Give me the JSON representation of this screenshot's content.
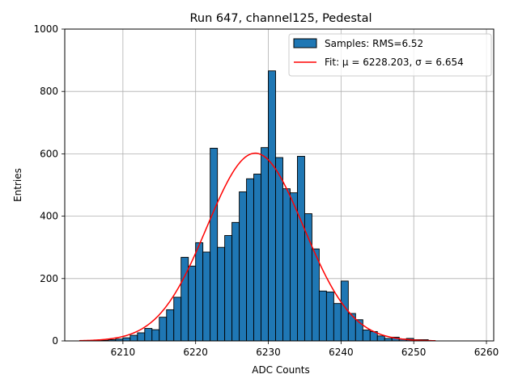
{
  "chart_data": {
    "type": "bar",
    "title": "Run 647, channel125, Pedestal",
    "xlabel": "ADC Counts",
    "ylabel": "Entries",
    "xlim": [
      6202,
      6261
    ],
    "ylim": [
      0,
      1000
    ],
    "xticks": [
      6210,
      6220,
      6230,
      6240,
      6250,
      6260
    ],
    "yticks": [
      0,
      200,
      400,
      600,
      800,
      1000
    ],
    "grid": true,
    "legend_position": "top-right",
    "bar_color": "#1f77b4",
    "fit_color": "#ff0000",
    "legend": {
      "samples_label": "Samples: RMS=6.52",
      "fit_label": "Fit: μ = 6228.203, σ = 6.654"
    },
    "bins": {
      "start": 6204,
      "width": 1,
      "counts": [
        0,
        0,
        1,
        2,
        4,
        6,
        10,
        18,
        26,
        40,
        36,
        76,
        100,
        140,
        268,
        240,
        315,
        285,
        618,
        300,
        338,
        380,
        478,
        520,
        535,
        620,
        866,
        588,
        488,
        475,
        592,
        408,
        295,
        160,
        157,
        120,
        192,
        88,
        68,
        35,
        30,
        16,
        8,
        12,
        6,
        8,
        4,
        4
      ]
    },
    "fit": {
      "mu": 6228.203,
      "sigma": 6.654,
      "amplitude": 602,
      "x_range": [
        6204,
        6253
      ]
    }
  }
}
